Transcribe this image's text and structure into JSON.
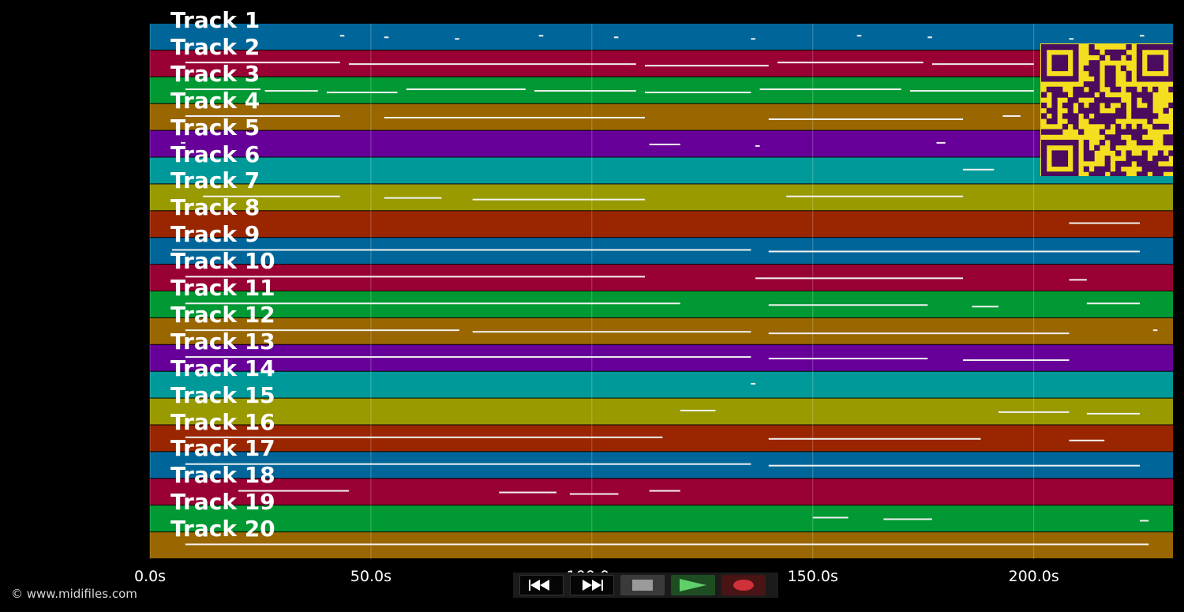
{
  "tracks": [
    {
      "label": "Track 1"
    },
    {
      "label": "Track 2"
    },
    {
      "label": "Track 3"
    },
    {
      "label": "Track 4"
    },
    {
      "label": "Track 5"
    },
    {
      "label": "Track 6"
    },
    {
      "label": "Track 7"
    },
    {
      "label": "Track 8"
    },
    {
      "label": "Track 9"
    },
    {
      "label": "Track 10"
    },
    {
      "label": "Track 11"
    },
    {
      "label": "Track 12"
    },
    {
      "label": "Track 13"
    },
    {
      "label": "Track 14"
    },
    {
      "label": "Track 15"
    },
    {
      "label": "Track 16"
    },
    {
      "label": "Track 17"
    },
    {
      "label": "Track 18"
    },
    {
      "label": "Track 19"
    },
    {
      "label": "Track 20"
    }
  ],
  "track_colors": [
    "#006699",
    "#990033",
    "#009933",
    "#996600",
    "#660099",
    "#009999",
    "#999900",
    "#992600"
  ],
  "timeline": {
    "duration_s": 231.5,
    "ticks": [
      {
        "value": 0,
        "label": "0.0s"
      },
      {
        "value": 50,
        "label": "50.0s"
      },
      {
        "value": 100,
        "label": "100.0s"
      },
      {
        "value": 150,
        "label": "150.0s"
      },
      {
        "value": 200,
        "label": "200.0s"
      }
    ]
  },
  "notes": {
    "1": [
      [
        43,
        44
      ],
      [
        53,
        54
      ],
      [
        69,
        70
      ],
      [
        88,
        89
      ],
      [
        105,
        106
      ],
      [
        136,
        137
      ],
      [
        160,
        161
      ],
      [
        176,
        177
      ],
      [
        208,
        209
      ],
      [
        224,
        225
      ]
    ],
    "2": [
      [
        8,
        43
      ],
      [
        45,
        110
      ],
      [
        112,
        140
      ],
      [
        142,
        175
      ],
      [
        177,
        200
      ]
    ],
    "3": [
      [
        8,
        25
      ],
      [
        26,
        38
      ],
      [
        40,
        56
      ],
      [
        58,
        85
      ],
      [
        87,
        110
      ],
      [
        112,
        136
      ],
      [
        138,
        170
      ],
      [
        172,
        200
      ]
    ],
    "4": [
      [
        8,
        43
      ],
      [
        53,
        112
      ],
      [
        140,
        184
      ],
      [
        193,
        197
      ]
    ],
    "5": [
      [
        7,
        8
      ],
      [
        113,
        120
      ],
      [
        137,
        138
      ],
      [
        178,
        180
      ]
    ],
    "6": [
      [
        184,
        191
      ]
    ],
    "7": [
      [
        12,
        43
      ],
      [
        53,
        66
      ],
      [
        73,
        112
      ],
      [
        144,
        184
      ]
    ],
    "8": [
      [
        208,
        224
      ]
    ],
    "9": [
      [
        5,
        136
      ],
      [
        140,
        224
      ]
    ],
    "10": [
      [
        8,
        112
      ],
      [
        137,
        184
      ],
      [
        208,
        212
      ]
    ],
    "11": [
      [
        8,
        120
      ],
      [
        140,
        176
      ],
      [
        186,
        192
      ],
      [
        212,
        224
      ]
    ],
    "12": [
      [
        8,
        70
      ],
      [
        73,
        136
      ],
      [
        140,
        208
      ],
      [
        227,
        228
      ]
    ],
    "13": [
      [
        8,
        136
      ],
      [
        140,
        176
      ],
      [
        184,
        208
      ]
    ],
    "14": [
      [
        136,
        137
      ]
    ],
    "15": [
      [
        120,
        128
      ],
      [
        192,
        208
      ],
      [
        212,
        224
      ]
    ],
    "16": [
      [
        8,
        116
      ],
      [
        140,
        188
      ],
      [
        208,
        216
      ]
    ],
    "17": [
      [
        8,
        136
      ],
      [
        140,
        224
      ]
    ],
    "18": [
      [
        20,
        45
      ],
      [
        79,
        92
      ],
      [
        95,
        106
      ],
      [
        113,
        120
      ]
    ],
    "19": [
      [
        150,
        158
      ],
      [
        166,
        177
      ],
      [
        224,
        226
      ]
    ],
    "20": [
      [
        8,
        226
      ]
    ]
  },
  "transport": {
    "rewind_icon": "rewind-icon",
    "fast_forward_icon": "fast-forward-icon",
    "stop_icon": "stop-icon",
    "play_icon": "play-icon",
    "record_icon": "record-icon"
  },
  "qr_code": {
    "fg": "#4b0c5e",
    "bg": "#f5de1f"
  },
  "copyright": "© www.midifiles.com"
}
